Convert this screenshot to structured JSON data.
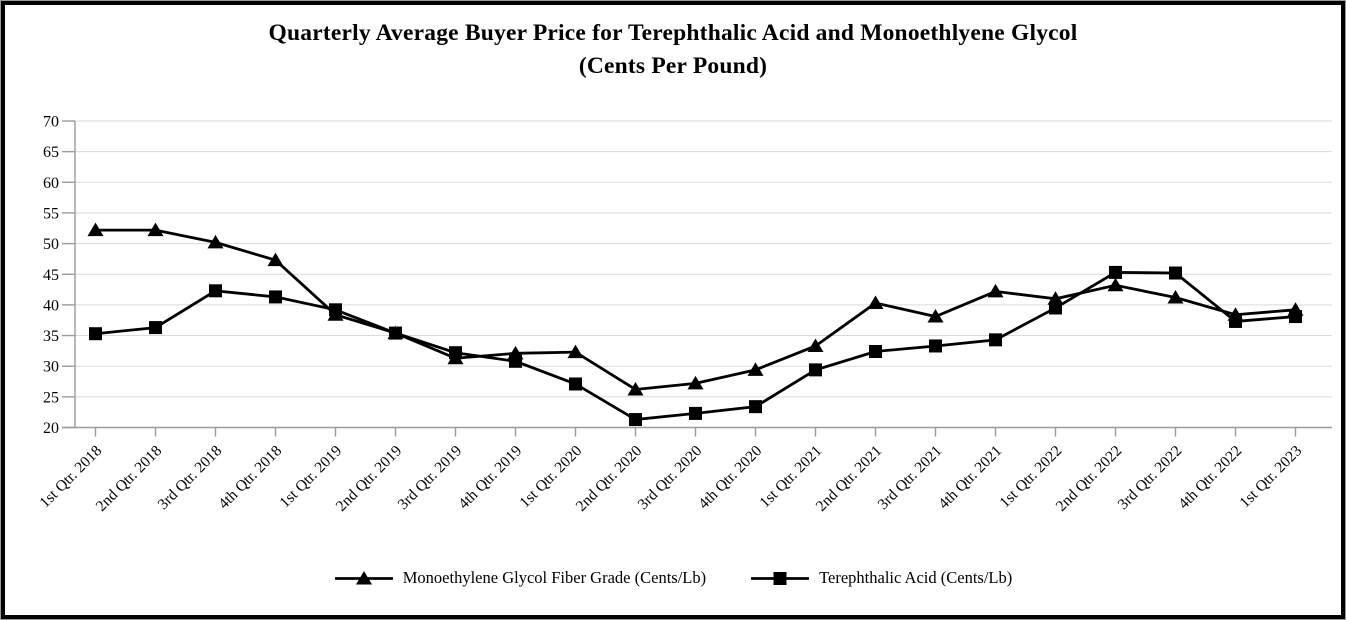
{
  "title": {
    "line1": "Quarterly Average Buyer Price for Terephthalic Acid and Monoethlyene Glycol",
    "line2": "(Cents Per Pound)"
  },
  "chart_data": {
    "type": "line",
    "title": "Quarterly Average Buyer Price for Terephthalic Acid and Monoethlyene Glycol (Cents Per Pound)",
    "xlabel": "",
    "ylabel": "",
    "ylim": [
      20,
      70
    ],
    "ytick_step": 5,
    "grid": true,
    "legend_position": "bottom",
    "categories": [
      "1st Qtr. 2018",
      "2nd Qtr. 2018",
      "3rd Qtr. 2018",
      "4th Qtr. 2018",
      "1st Qtr. 2019",
      "2nd Qtr. 2019",
      "3rd Qtr. 2019",
      "4th Qtr. 2019",
      "1st Qtr. 2020",
      "2nd Qtr. 2020",
      "3rd Qtr. 2020",
      "4th Qtr. 2020",
      "1st Qtr. 2021",
      "2nd Qtr. 2021",
      "3rd Qtr. 2021",
      "4th Qtr. 2021",
      "1st Qtr. 2022",
      "2nd Qtr. 2022",
      "3rd Qtr. 2022",
      "4th Qtr. 2022",
      "1st Qtr. 2023"
    ],
    "series": [
      {
        "name": "Monoethylene Glycol Fiber Grade (Cents/Lb)",
        "marker": "triangle",
        "values": [
          52.2,
          52.2,
          50.2,
          47.3,
          38.4,
          35.4,
          31.3,
          32.1,
          32.3,
          26.2,
          27.2,
          29.4,
          33.3,
          40.3,
          38.1,
          42.2,
          41.0,
          43.2,
          41.2,
          38.4,
          39.2
        ]
      },
      {
        "name": "Terephthalic Acid (Cents/Lb)",
        "marker": "square",
        "values": [
          35.3,
          36.3,
          42.3,
          41.3,
          39.2,
          35.4,
          32.2,
          30.8,
          27.1,
          21.3,
          22.3,
          23.4,
          29.4,
          32.4,
          33.3,
          34.3,
          39.5,
          45.3,
          45.2,
          37.3,
          38.1
        ]
      }
    ],
    "colors": {
      "series": "#000000",
      "gridline": "#d9d9d9",
      "axis": "#9a9a9a",
      "text": "#000000"
    }
  }
}
